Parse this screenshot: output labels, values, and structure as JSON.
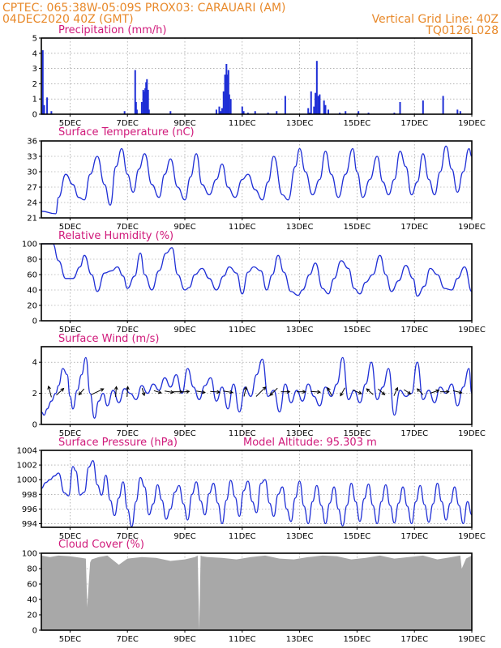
{
  "header": {
    "line1_left": "CPTEC:   065:38W-05:09S   PROX03: CARAUARI (AM)",
    "line2_left": "04DEC2020 40Z (GMT)",
    "line2_right": "Vertical Grid Line: 40Z",
    "line3_right": "TQ0126L028"
  },
  "colors": {
    "header": "#e8892a",
    "panel_title": "#d0197a",
    "series": "#1f2fd6",
    "cloud": "#a8a8a8",
    "wind_arrow": "#000000"
  },
  "x_axis": {
    "ticks": [
      "5DEC",
      "7DEC",
      "9DEC",
      "11DEC",
      "13DEC",
      "15DEC",
      "17DEC",
      "19DEC"
    ],
    "tick_days": [
      5,
      7,
      9,
      11,
      13,
      15,
      17,
      19
    ],
    "range_days": [
      4.0,
      19.0
    ]
  },
  "chart_data": [
    {
      "type": "bar",
      "title": "Precipitation (mm/h)",
      "ylim": [
        0,
        5
      ],
      "yticks": [
        "0",
        "1",
        "2",
        "3",
        "4",
        "5"
      ],
      "x_days": [
        4.05,
        4.1,
        4.2,
        4.35,
        6.9,
        7.27,
        7.3,
        7.33,
        7.5,
        7.55,
        7.58,
        7.62,
        7.65,
        7.68,
        7.72,
        7.75,
        8.5,
        10.1,
        10.2,
        10.25,
        10.3,
        10.35,
        10.4,
        10.45,
        10.48,
        10.52,
        10.55,
        10.6,
        11.0,
        11.05,
        11.2,
        11.45,
        11.9,
        12.2,
        12.5,
        13.3,
        13.35,
        13.4,
        13.5,
        13.55,
        13.6,
        13.65,
        13.7,
        13.85,
        13.9,
        14.0,
        14.4,
        14.6,
        15.05,
        15.4,
        16.3,
        16.5,
        17.3,
        18.0,
        18.5,
        18.6
      ],
      "values": [
        4.2,
        0.6,
        1.1,
        0.2,
        0.2,
        2.9,
        0.8,
        0.3,
        0.8,
        1.6,
        1.5,
        1.7,
        2.1,
        2.3,
        1.6,
        0.3,
        0.2,
        0.3,
        0.5,
        0.2,
        0.4,
        1.5,
        2.6,
        3.3,
        2.6,
        2.9,
        1.3,
        1.0,
        0.5,
        0.2,
        0.1,
        0.2,
        0.1,
        0.2,
        1.2,
        0.4,
        0.1,
        1.5,
        0.5,
        1.4,
        3.5,
        1.2,
        1.3,
        0.9,
        0.6,
        0.3,
        0.1,
        0.2,
        0.2,
        0.1,
        0.1,
        0.8,
        0.9,
        1.2,
        0.3,
        0.2
      ]
    },
    {
      "type": "line",
      "title": "Surface Temperature (nC)",
      "ylim": [
        21,
        36
      ],
      "yticks": [
        "21",
        "24",
        "27",
        "30",
        "33",
        "36"
      ],
      "x_days": [
        4.0,
        4.5,
        4.6,
        4.85,
        5.1,
        5.3,
        5.5,
        5.7,
        5.95,
        6.2,
        6.4,
        6.6,
        6.8,
        7.0,
        7.2,
        7.4,
        7.6,
        7.85,
        8.1,
        8.3,
        8.5,
        8.75,
        9.0,
        9.2,
        9.4,
        9.6,
        9.85,
        10.1,
        10.3,
        10.5,
        10.75,
        11.0,
        11.2,
        11.45,
        11.7,
        11.9,
        12.1,
        12.4,
        12.6,
        12.85,
        13.0,
        13.2,
        13.45,
        13.7,
        13.9,
        14.1,
        14.35,
        14.6,
        14.85,
        15.0,
        15.2,
        15.45,
        15.7,
        15.9,
        16.1,
        16.3,
        16.5,
        16.7,
        16.9,
        17.1,
        17.3,
        17.5,
        17.7,
        17.9,
        18.1,
        18.3,
        18.5,
        18.7,
        18.9,
        19.0
      ],
      "values": [
        22.3,
        21.8,
        25.0,
        29.5,
        27.5,
        25.0,
        24.5,
        29.5,
        33.0,
        27.5,
        23.5,
        31.0,
        34.5,
        29.5,
        26.0,
        30.5,
        33.5,
        27.5,
        25.0,
        29.5,
        32.5,
        27.0,
        24.5,
        29.0,
        33.5,
        27.5,
        25.5,
        28.5,
        31.5,
        27.0,
        25.0,
        28.5,
        29.5,
        26.5,
        24.5,
        28.0,
        33.0,
        25.5,
        24.5,
        31.0,
        34.5,
        30.0,
        25.5,
        28.5,
        34.0,
        29.5,
        25.0,
        29.5,
        34.5,
        30.0,
        25.0,
        28.5,
        33.0,
        28.0,
        25.5,
        28.5,
        34.0,
        31.0,
        25.5,
        28.0,
        33.5,
        28.5,
        25.5,
        30.0,
        35.0,
        30.5,
        26.0,
        30.0,
        34.5,
        33.0
      ]
    },
    {
      "type": "line",
      "title": "Relative Humidity (%)",
      "ylim": [
        0,
        100
      ],
      "yticks": [
        "0",
        "20",
        "40",
        "60",
        "80",
        "100"
      ],
      "x_days": [
        4.0,
        4.4,
        4.6,
        4.85,
        5.1,
        5.35,
        5.5,
        5.75,
        5.95,
        6.2,
        6.45,
        6.65,
        6.85,
        7.0,
        7.25,
        7.45,
        7.6,
        7.85,
        8.1,
        8.35,
        8.55,
        8.75,
        9.0,
        9.15,
        9.35,
        9.6,
        9.85,
        10.1,
        10.35,
        10.55,
        10.8,
        11.0,
        11.2,
        11.4,
        11.65,
        11.85,
        12.05,
        12.25,
        12.45,
        12.7,
        12.95,
        13.1,
        13.35,
        13.55,
        13.8,
        14.0,
        14.2,
        14.45,
        14.7,
        14.9,
        15.1,
        15.3,
        15.55,
        15.8,
        16.0,
        16.2,
        16.45,
        16.7,
        16.95,
        17.1,
        17.35,
        17.55,
        17.8,
        18.05,
        18.3,
        18.5,
        18.75,
        19.0
      ],
      "values": [
        100,
        100,
        78,
        55,
        55,
        70,
        85,
        60,
        38,
        62,
        65,
        70,
        58,
        42,
        58,
        88,
        60,
        40,
        65,
        88,
        95,
        60,
        40,
        43,
        60,
        68,
        55,
        40,
        58,
        70,
        62,
        35,
        63,
        70,
        65,
        40,
        60,
        85,
        63,
        38,
        33,
        40,
        60,
        75,
        42,
        35,
        55,
        78,
        68,
        42,
        35,
        50,
        60,
        85,
        60,
        38,
        52,
        72,
        55,
        32,
        45,
        68,
        60,
        42,
        40,
        55,
        70,
        38
      ],
      "extra_points": [
        [
          7.48,
          95
        ],
        [
          8.45,
          60
        ],
        [
          11.55,
          71
        ],
        [
          13.45,
          73
        ],
        [
          14.6,
          82
        ],
        [
          16.6,
          74
        ],
        [
          18.62,
          70
        ]
      ]
    },
    {
      "type": "line",
      "title": "Surface Wind (m/s)",
      "ylim": [
        0,
        5
      ],
      "yticks": [
        "0",
        "2",
        "4"
      ],
      "x_days": [
        4.0,
        4.1,
        4.2,
        4.35,
        4.5,
        4.6,
        4.75,
        4.9,
        5.0,
        5.1,
        5.25,
        5.4,
        5.55,
        5.7,
        5.85,
        6.0,
        6.15,
        6.3,
        6.5,
        6.7,
        6.9,
        7.1,
        7.3,
        7.5,
        7.7,
        7.9,
        8.1,
        8.3,
        8.5,
        8.7,
        8.9,
        9.1,
        9.3,
        9.5,
        9.7,
        9.9,
        10.1,
        10.3,
        10.5,
        10.7,
        10.9,
        11.1,
        11.3,
        11.5,
        11.7,
        11.9,
        12.1,
        12.3,
        12.5,
        12.7,
        12.9,
        13.1,
        13.3,
        13.5,
        13.7,
        13.9,
        14.1,
        14.3,
        14.5,
        14.7,
        14.9,
        15.1,
        15.3,
        15.5,
        15.7,
        15.9,
        16.1,
        16.3,
        16.5,
        16.7,
        16.9,
        17.1,
        17.3,
        17.5,
        17.7,
        17.9,
        18.1,
        18.3,
        18.5,
        18.7,
        18.9,
        19.0
      ],
      "values": [
        0.8,
        0.6,
        1.0,
        1.5,
        2.0,
        2.5,
        3.6,
        3.2,
        1.8,
        1.0,
        2.2,
        3.2,
        4.3,
        2.0,
        0.4,
        1.5,
        2.0,
        1.2,
        2.2,
        1.4,
        2.3,
        2.0,
        1.6,
        2.5,
        2.0,
        2.6,
        2.2,
        3.0,
        2.4,
        3.2,
        2.0,
        3.6,
        2.4,
        1.6,
        2.5,
        3.0,
        1.5,
        2.4,
        1.0,
        2.6,
        0.8,
        2.4,
        1.8,
        3.2,
        4.2,
        1.8,
        2.2,
        0.8,
        2.6,
        1.4,
        2.2,
        1.5,
        2.6,
        1.8,
        1.2,
        2.4,
        1.8,
        2.6,
        4.3,
        1.6,
        2.2,
        1.4,
        2.6,
        4.0,
        1.6,
        2.4,
        3.6,
        0.6,
        2.2,
        1.8,
        2.0,
        4.0,
        1.6,
        2.2,
        1.4,
        2.4,
        2.0,
        2.6,
        1.2,
        2.4,
        3.6,
        2.0
      ],
      "arrows": [
        {
          "day": 4.3,
          "u": -0.4,
          "v": 1.5
        },
        {
          "day": 4.65,
          "u": 1.0,
          "v": 0.9
        },
        {
          "day": 5.4,
          "u": -0.7,
          "v": -0.8
        },
        {
          "day": 5.95,
          "u": 1.7,
          "v": 0.8
        },
        {
          "day": 6.6,
          "u": 0.1,
          "v": 1.4
        },
        {
          "day": 7.0,
          "u": 0.1,
          "v": 1.4
        },
        {
          "day": 7.55,
          "u": 0.3,
          "v": -1.0
        },
        {
          "day": 8.05,
          "u": 1.0,
          "v": -0.3
        },
        {
          "day": 8.45,
          "u": 1.2,
          "v": -0.2
        },
        {
          "day": 8.75,
          "u": 1.3,
          "v": 0.0
        },
        {
          "day": 9.0,
          "u": 1.2,
          "v": 0.1
        },
        {
          "day": 9.55,
          "u": 1.2,
          "v": -0.2
        },
        {
          "day": 10.05,
          "u": 1.3,
          "v": -0.1
        },
        {
          "day": 10.5,
          "u": 1.3,
          "v": -0.2
        },
        {
          "day": 11.1,
          "u": 0.3,
          "v": 1.3
        },
        {
          "day": 11.65,
          "u": 1.3,
          "v": 1.3
        },
        {
          "day": 12.1,
          "u": -1.0,
          "v": -1.0
        },
        {
          "day": 12.5,
          "u": 1.2,
          "v": 0.0
        },
        {
          "day": 13.05,
          "u": 1.2,
          "v": 0.0
        },
        {
          "day": 13.55,
          "u": 1.3,
          "v": -0.1
        },
        {
          "day": 14.05,
          "u": -0.6,
          "v": 1.1
        },
        {
          "day": 14.5,
          "u": -0.6,
          "v": -1.1
        },
        {
          "day": 15.0,
          "u": 1.2,
          "v": -0.5
        },
        {
          "day": 15.45,
          "u": -0.9,
          "v": 0.8
        },
        {
          "day": 15.85,
          "u": 0.9,
          "v": -0.8
        },
        {
          "day": 16.35,
          "u": 0.5,
          "v": 1.1
        },
        {
          "day": 16.75,
          "u": 0.9,
          "v": -0.6
        },
        {
          "day": 17.2,
          "u": -0.8,
          "v": 0.8
        },
        {
          "day": 17.7,
          "u": 1.2,
          "v": 0.4
        },
        {
          "day": 18.05,
          "u": 1.2,
          "v": 0.0
        },
        {
          "day": 18.5,
          "u": 1.2,
          "v": -0.3
        }
      ]
    },
    {
      "type": "line",
      "title": "Surface Pressure (hPa)",
      "subtitle": "Model Altitude: 95.303 m",
      "ylim": [
        993.5,
        1004
      ],
      "yticks": [
        "994",
        "996",
        "998",
        "1000",
        "1002",
        "1004"
      ],
      "x_days": [
        4.0,
        4.15,
        4.3,
        4.45,
        4.6,
        4.8,
        4.95,
        5.1,
        5.2,
        5.35,
        5.5,
        5.65,
        5.8,
        5.95,
        6.1,
        6.25,
        6.4,
        6.55,
        6.7,
        6.85,
        7.0,
        7.15,
        7.3,
        7.45,
        7.6,
        7.75,
        7.9,
        8.05,
        8.2,
        8.35,
        8.5,
        8.65,
        8.8,
        8.95,
        9.1,
        9.25,
        9.4,
        9.55,
        9.7,
        9.85,
        10.0,
        10.15,
        10.3,
        10.45,
        10.6,
        10.75,
        10.9,
        11.05,
        11.2,
        11.35,
        11.5,
        11.65,
        11.8,
        11.95,
        12.1,
        12.25,
        12.4,
        12.55,
        12.7,
        12.85,
        13.0,
        13.15,
        13.3,
        13.45,
        13.6,
        13.75,
        13.9,
        14.05,
        14.2,
        14.35,
        14.5,
        14.65,
        14.8,
        14.95,
        15.1,
        15.25,
        15.4,
        15.55,
        15.7,
        15.85,
        16.0,
        16.15,
        16.3,
        16.45,
        16.6,
        16.75,
        16.9,
        17.05,
        17.2,
        17.35,
        17.5,
        17.65,
        17.8,
        17.95,
        18.1,
        18.25,
        18.4,
        18.55,
        18.7,
        18.85,
        19.0
      ],
      "values": [
        998.8,
        999.6,
        1000.0,
        1000.5,
        1000.9,
        998.2,
        997.8,
        1001.8,
        1001.2,
        997.9,
        998.3,
        1001.7,
        1002.6,
        999.3,
        997.9,
        1000.6,
        997.2,
        995.1,
        997.5,
        999.7,
        996.0,
        993.6,
        997.0,
        1000.3,
        999.0,
        995.2,
        996.7,
        999.3,
        997.2,
        994.6,
        996.0,
        998.3,
        999.2,
        996.7,
        994.5,
        998.0,
        999.7,
        997.1,
        995.2,
        998.1,
        999.5,
        996.8,
        994.0,
        997.2,
        999.9,
        997.6,
        995.0,
        998.5,
        999.8,
        997.0,
        995.5,
        999.5,
        1000.0,
        996.8,
        995.0,
        998.0,
        999.0,
        996.0,
        994.3,
        997.5,
        999.8,
        996.4,
        994.0,
        997.0,
        999.2,
        996.5,
        994.0,
        996.8,
        999.0,
        996.0,
        993.7,
        996.5,
        999.5,
        997.0,
        994.3,
        997.4,
        999.4,
        996.5,
        994.0,
        997.0,
        999.3,
        996.5,
        994.1,
        996.8,
        999.0,
        996.4,
        994.0,
        997.0,
        999.2,
        996.6,
        994.2,
        996.7,
        999.5,
        997.0,
        994.5,
        996.8,
        999.0,
        996.5,
        994.0,
        997.0,
        995.2
      ]
    },
    {
      "type": "area",
      "title": "Cloud Cover (%)",
      "ylim": [
        0,
        100
      ],
      "yticks": [
        "0",
        "20",
        "40",
        "60",
        "80",
        "100"
      ],
      "x_days": [
        4.0,
        4.3,
        4.6,
        5.0,
        5.4,
        5.55,
        5.6,
        5.65,
        5.7,
        5.75,
        6.0,
        6.3,
        6.7,
        7.0,
        7.5,
        8.0,
        8.5,
        9.0,
        9.35,
        9.45,
        9.5,
        9.55,
        9.6,
        9.8,
        10.3,
        10.8,
        11.3,
        11.8,
        12.3,
        12.8,
        13.3,
        13.8,
        14.3,
        14.8,
        15.3,
        15.8,
        16.3,
        16.8,
        17.3,
        17.8,
        18.3,
        18.6,
        18.65,
        18.8,
        19.0
      ],
      "values": [
        97,
        95,
        97,
        96,
        94,
        93,
        30,
        60,
        88,
        92,
        95,
        97,
        85,
        93,
        95,
        94,
        90,
        92,
        95,
        97,
        0,
        97,
        96,
        95,
        94,
        92,
        95,
        97,
        93,
        92,
        95,
        97,
        96,
        92,
        94,
        97,
        93,
        95,
        97,
        92,
        95,
        97,
        80,
        93,
        97
      ]
    }
  ]
}
